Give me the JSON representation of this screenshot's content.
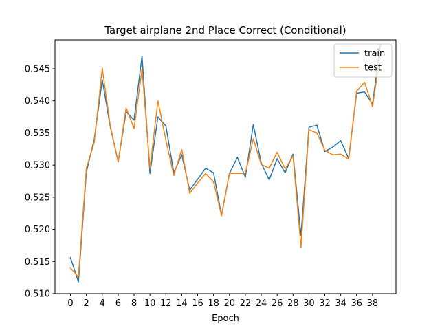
{
  "chart_data": {
    "type": "line",
    "title": "Target airplane 2nd Place Correct (Conditional)",
    "xlabel": "Epoch",
    "ylabel": "",
    "xlim": [
      -1.95,
      40.95
    ],
    "ylim": [
      0.51,
      0.5495
    ],
    "xticks": [
      0,
      2,
      4,
      6,
      8,
      10,
      12,
      14,
      16,
      18,
      20,
      22,
      24,
      26,
      28,
      30,
      32,
      34,
      36,
      38
    ],
    "yticks": [
      0.51,
      0.515,
      0.52,
      0.525,
      0.53,
      0.535,
      0.54,
      0.545
    ],
    "ytick_labels": [
      "0.510",
      "0.515",
      "0.520",
      "0.525",
      "0.530",
      "0.535",
      "0.540",
      "0.545"
    ],
    "grid": false,
    "legend_position": "top-right",
    "x": [
      0,
      1,
      2,
      3,
      4,
      5,
      6,
      7,
      8,
      9,
      10,
      11,
      12,
      13,
      14,
      15,
      16,
      17,
      18,
      19,
      20,
      21,
      22,
      23,
      24,
      25,
      26,
      27,
      28,
      29,
      30,
      31,
      32,
      33,
      34,
      35,
      36,
      37,
      38,
      39
    ],
    "series": [
      {
        "name": "train",
        "color": "#1f77b4",
        "values": [
          0.5156,
          0.5118,
          0.5289,
          0.5341,
          0.5433,
          0.536,
          0.5305,
          0.5383,
          0.537,
          0.547,
          0.5287,
          0.5375,
          0.5361,
          0.5288,
          0.5316,
          0.5261,
          0.5278,
          0.5295,
          0.5288,
          0.5222,
          0.5287,
          0.5312,
          0.5281,
          0.5363,
          0.5303,
          0.5277,
          0.531,
          0.5288,
          0.5317,
          0.519,
          0.5359,
          0.5362,
          0.5321,
          0.5328,
          0.5338,
          0.531,
          0.5412,
          0.5414,
          0.5395,
          0.5488
        ]
      },
      {
        "name": "test",
        "color": "#ff7f0e",
        "values": [
          0.514,
          0.5126,
          0.5295,
          0.5336,
          0.5451,
          0.5362,
          0.5305,
          0.5389,
          0.5357,
          0.545,
          0.5295,
          0.54,
          0.5339,
          0.5284,
          0.5324,
          0.5256,
          0.5272,
          0.5287,
          0.5274,
          0.5221,
          0.5287,
          0.5287,
          0.5287,
          0.5341,
          0.5301,
          0.5295,
          0.532,
          0.5294,
          0.5314,
          0.5172,
          0.5355,
          0.535,
          0.5323,
          0.5316,
          0.5317,
          0.5309,
          0.5415,
          0.5429,
          0.5391,
          0.5475
        ]
      }
    ]
  }
}
